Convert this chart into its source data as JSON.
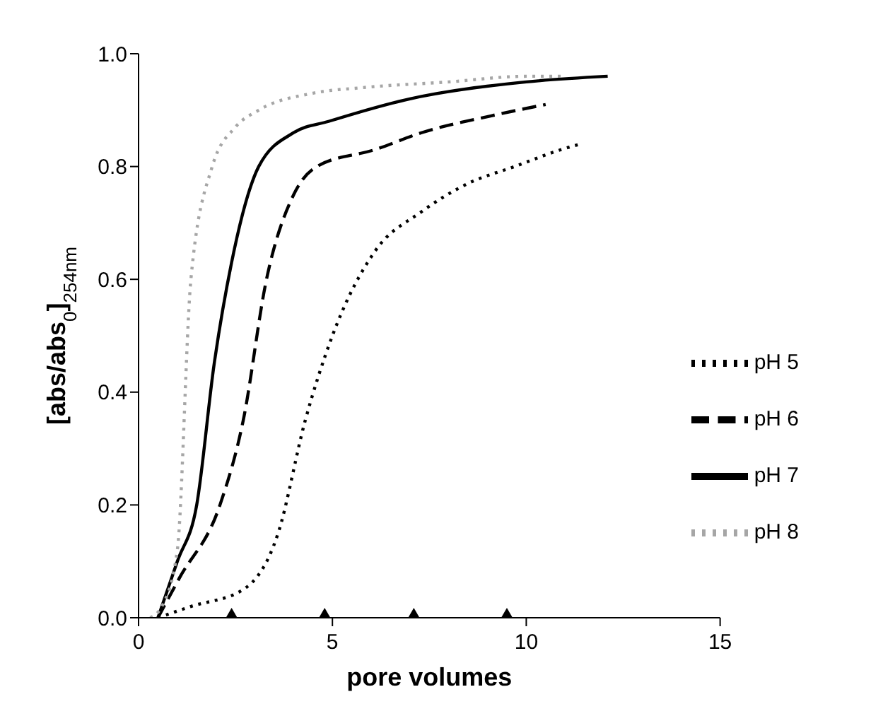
{
  "chart_data": {
    "type": "line",
    "xlabel": "pore volumes",
    "ylabel": "[abs/abs$_{0}$]$_{254nm}$",
    "xlim": [
      0,
      15
    ],
    "xticks": [
      0,
      5,
      10,
      15
    ],
    "ylim": [
      0,
      1
    ],
    "yticks": [
      {
        "value": 0,
        "label": "0.0"
      },
      {
        "value": 0.2,
        "label": "0.2"
      },
      {
        "value": 0.4,
        "label": "0.4"
      },
      {
        "value": 0.6,
        "label": "0.6"
      },
      {
        "value": 0.8,
        "label": "0.8"
      },
      {
        "value": 1,
        "label": "1.0"
      }
    ],
    "grid": false,
    "legend": "bottom right",
    "marker": "none",
    "series": [
      {
        "name": "pH 5",
        "color": "#000000",
        "line_style": "dotted",
        "x": [
          0.5,
          1.35,
          2.7,
          3.6,
          4.3,
          5,
          6.1,
          7.3,
          8.5,
          9.7,
          10.9,
          11.4
        ],
        "values": [
          0,
          0.02,
          0.05,
          0.15,
          0.35,
          0.5,
          0.65,
          0.72,
          0.77,
          0.8,
          0.83,
          0.84
        ]
      },
      {
        "name": "pH 6",
        "color": "#000000",
        "line_style": "dashed",
        "x": [
          0.5,
          1.05,
          2.1,
          2.7,
          3.3,
          4,
          4.6,
          6.1,
          7.3,
          9.1,
          10.5
        ],
        "values": [
          0,
          0.07,
          0.2,
          0.35,
          0.6,
          0.75,
          0.8,
          0.83,
          0.86,
          0.89,
          0.91
        ]
      },
      {
        "name": "pH 7",
        "color": "#000000",
        "line_style": "solid",
        "x": [
          0.5,
          1,
          1.5,
          1.95,
          2.4,
          3.1,
          4,
          4.9,
          7,
          10,
          12.1
        ],
        "values": [
          0,
          0.1,
          0.2,
          0.45,
          0.63,
          0.8,
          0.86,
          0.88,
          0.92,
          0.95,
          0.96
        ]
      },
      {
        "name": "pH 8",
        "color": "#a6a6a6",
        "line_style": "dotted",
        "x": [
          0.3,
          0.6,
          1,
          1.35,
          1.9,
          2.5,
          3.1,
          4.5,
          5.8,
          8,
          10,
          10.9
        ],
        "values": [
          0,
          0.02,
          0.12,
          0.6,
          0.8,
          0.87,
          0.9,
          0.93,
          0.94,
          0.95,
          0.96,
          0.96
        ]
      },
      {
        "type": "scatter",
        "marker": "triangle",
        "color": "#000000",
        "x": [
          2.4,
          4.8,
          7.1,
          9.5
        ],
        "values": [
          0,
          0,
          0,
          0
        ]
      }
    ]
  }
}
